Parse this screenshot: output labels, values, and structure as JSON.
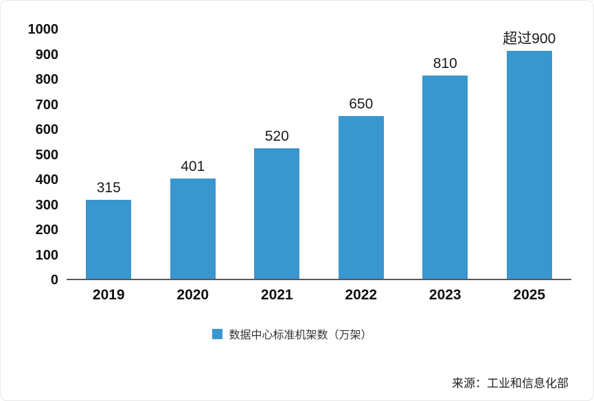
{
  "chart_data": {
    "type": "bar",
    "title": "",
    "categories": [
      "2019",
      "2020",
      "2021",
      "2022",
      "2023",
      "2025"
    ],
    "values": [
      315,
      401,
      520,
      650,
      810,
      910
    ],
    "value_labels": [
      "315",
      "401",
      "520",
      "650",
      "810",
      "超过900"
    ],
    "xlabel": "",
    "ylabel": "",
    "ylim": [
      0,
      1000
    ],
    "yticks": [
      0,
      100,
      200,
      300,
      400,
      500,
      600,
      700,
      800,
      900,
      1000
    ],
    "grid": false,
    "legend_position": "bottom",
    "legend_label": "数据中心标准机架数（万架）",
    "bar_color": "#3A96CE"
  },
  "source": {
    "text": "来源：工业和信息化部"
  }
}
